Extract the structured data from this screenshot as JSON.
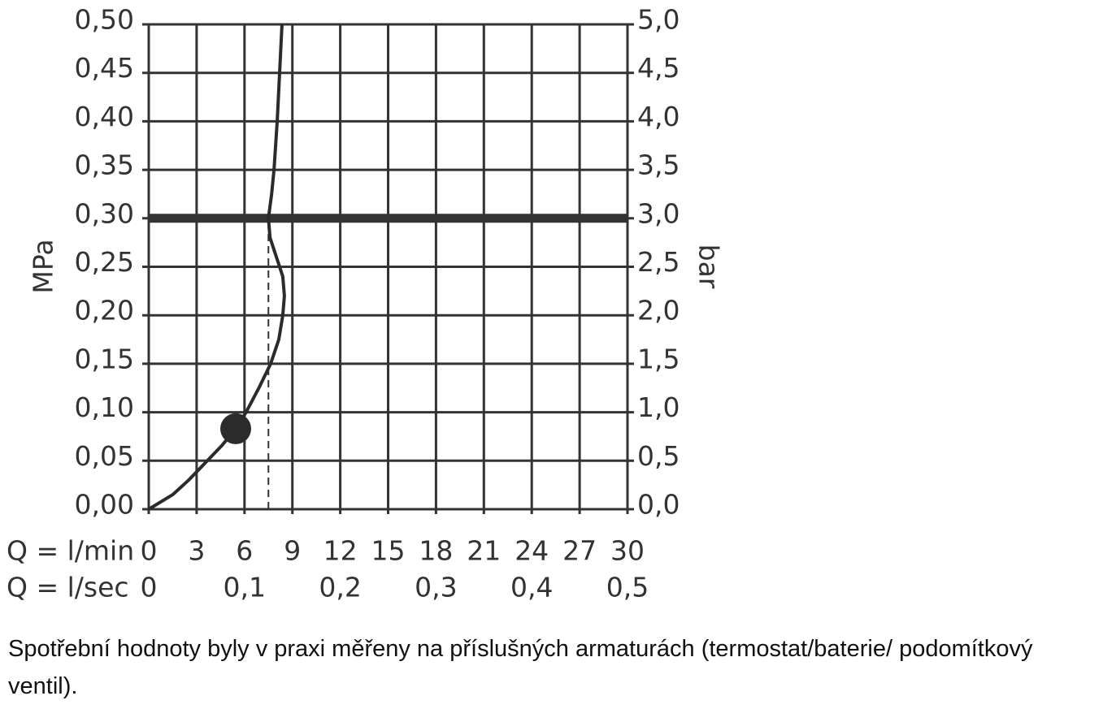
{
  "chart_data": {
    "type": "line",
    "y_label": "MPa",
    "y2_label": "bar",
    "x_label": "Q = l/min",
    "x2_label": "Q = l/sec",
    "x": [
      0,
      1.5,
      2.5,
      3.67,
      4.6,
      5.45,
      6.1,
      6.9,
      7.64,
      8.15,
      8.4,
      8.5,
      8.4,
      8.2,
      7.9,
      7.6,
      7.5,
      7.7,
      7.85,
      8.05,
      8.2,
      8.35
    ],
    "series": [
      {
        "name": "flow",
        "color": "#2b2b2b",
        "values": [
          0,
          0.015,
          0.03,
          0.05,
          0.066,
          0.083,
          0.1,
          0.125,
          0.15,
          0.175,
          0.2,
          0.22,
          0.24,
          0.25,
          0.265,
          0.28,
          0.3,
          0.325,
          0.35,
          0.4,
          0.45,
          0.5
        ]
      }
    ],
    "highlight_point": {
      "x": 5.45,
      "y": 0.083
    },
    "reference_y": 0.3,
    "reference_x": 7.5,
    "xlim": [
      0,
      30
    ],
    "xticks": [
      0,
      3,
      6,
      9,
      12,
      15,
      18,
      21,
      24,
      27,
      30
    ],
    "x2lim": [
      0,
      0.5
    ],
    "x2ticks": [
      0,
      {
        "value": 0.1,
        "label": "0,1"
      },
      {
        "value": 0.2,
        "label": "0,2"
      },
      {
        "value": 0.3,
        "label": "0,3"
      },
      {
        "value": 0.4,
        "label": "0,4"
      },
      {
        "value": 0.5,
        "label": "0,5"
      }
    ],
    "ylim": [
      0,
      0.5
    ],
    "yticks": [
      {
        "value": 0,
        "label": "0,00"
      },
      {
        "value": 0.05,
        "label": "0,05"
      },
      {
        "value": 0.1,
        "label": "0,10"
      },
      {
        "value": 0.15,
        "label": "0,15"
      },
      {
        "value": 0.2,
        "label": "0,20"
      },
      {
        "value": 0.25,
        "label": "0,25"
      },
      {
        "value": 0.3,
        "label": "0,30"
      },
      {
        "value": 0.35,
        "label": "0,35"
      },
      {
        "value": 0.4,
        "label": "0,40"
      },
      {
        "value": 0.45,
        "label": "0,45"
      },
      {
        "value": 0.5,
        "label": "0,50"
      }
    ],
    "y2lim": [
      0,
      5
    ],
    "y2ticks": [
      {
        "value": 0,
        "label": "0,0"
      },
      {
        "value": 0.5,
        "label": "0,5"
      },
      {
        "value": 1,
        "label": "1,0"
      },
      {
        "value": 1.5,
        "label": "1,5"
      },
      {
        "value": 2,
        "label": "2,0"
      },
      {
        "value": 2.5,
        "label": "2,5"
      },
      {
        "value": 3,
        "label": "3,0"
      },
      {
        "value": 3.5,
        "label": "3,5"
      },
      {
        "value": 4,
        "label": "4,0"
      },
      {
        "value": 4.5,
        "label": "4,5"
      },
      {
        "value": 5,
        "label": "5,0"
      }
    ],
    "grid": true
  },
  "footnote": "Spotřební hodnoty byly v praxi měřeny na příslušných armaturách (termostat/baterie/ podomítkový ventil)."
}
